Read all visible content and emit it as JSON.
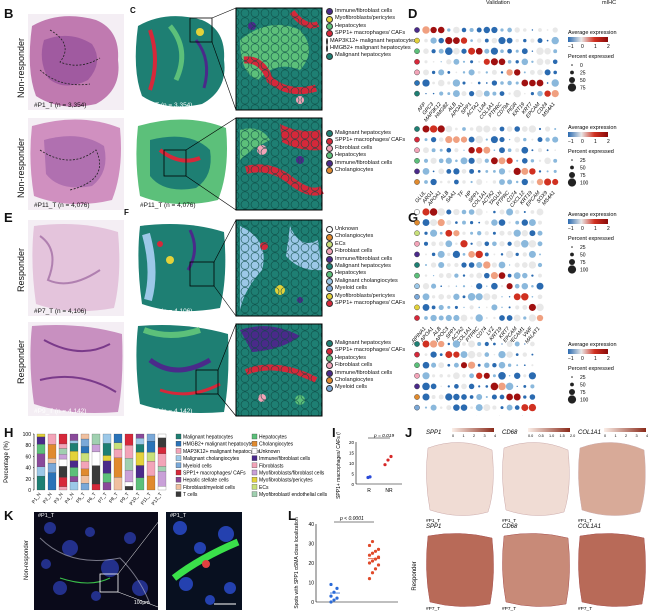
{
  "header": {
    "validation": "Validation",
    "mihc": "mIHC"
  },
  "panel_letters": {
    "B": "B",
    "C": "C",
    "D": "D",
    "E": "E",
    "F": "F",
    "G": "G",
    "H": "H",
    "I": "I",
    "J": "J",
    "K": "K",
    "L": "L"
  },
  "row_labels": {
    "nr1": "Non-responder",
    "nr2": "Non-responder",
    "r1": "Responder",
    "r2": "Responder",
    "j": "Responder",
    "k": "Non-responder"
  },
  "samples": {
    "s1_he": "#P1_T (n = 3,354)",
    "s1_sp": "#P1_T (n = 3,354)",
    "s2_he": "#P11_T (n = 4,076)",
    "s2_sp": "#P11_T (n = 4,076)",
    "s3_he": "#P7_T (n = 4,106)",
    "s3_sp": "#P7_T (n = 4,106)",
    "s4_he": "#P9_T (n = 4,142)",
    "s4_sp": "#P9_T (n = 4,142)"
  },
  "legend_c1": [
    {
      "label": "Immune/fibroblast cells",
      "color": "#4a2a8a"
    },
    {
      "label": "Myofibroblasts/pericytes",
      "color": "#e3d23a"
    },
    {
      "label": "Hepatocytes",
      "color": "#5cc07a"
    },
    {
      "label": "SPP1+ macrophages/ CAFs",
      "color": "#d6283a"
    },
    {
      "label": "MAP3K12+ malignant hepatocytes",
      "color": "#f3a4b8"
    },
    {
      "label": "HMGB2+ malignant hepatocytes",
      "color": "#2a73b8"
    },
    {
      "label": "Malignant hepatocytes",
      "color": "#1e7f73"
    }
  ],
  "legend_c2": [
    {
      "label": "Malignant hepatocytes",
      "color": "#1e7f73"
    },
    {
      "label": "SPP1+ macrophages/ CAFs",
      "color": "#d6283a"
    },
    {
      "label": "Fibroblast cells",
      "color": "#f3a4b8"
    },
    {
      "label": "Hepatocytes",
      "color": "#5cc07a"
    },
    {
      "label": "Immune/fibroblast cells",
      "color": "#4a2a8a"
    },
    {
      "label": "Cholangiocytes",
      "color": "#e08a2e"
    }
  ],
  "legend_f1": [
    {
      "label": "Unknown",
      "color": "#ffffff"
    },
    {
      "label": "Cholangiocytes",
      "color": "#e08a2e"
    },
    {
      "label": "ECs",
      "color": "#c8e07a"
    },
    {
      "label": "Fibroblast cells",
      "color": "#f3a4b8"
    },
    {
      "label": "Immune/fibroblast cells",
      "color": "#4a2a8a"
    },
    {
      "label": "Malignant hepatocytes",
      "color": "#1e7f73"
    },
    {
      "label": "Hepatocytes",
      "color": "#5cc07a"
    },
    {
      "label": "Malignant cholangiocytes",
      "color": "#9cc8e8"
    },
    {
      "label": "Myeloid cells",
      "color": "#7aa8d8"
    },
    {
      "label": "Myofibroblasts/pericytes",
      "color": "#e3d23a"
    },
    {
      "label": "SPP1+ macrophages/ CAFs",
      "color": "#d6283a"
    }
  ],
  "legend_f2": [
    {
      "label": "Malignant hepatocytes",
      "color": "#1e7f73"
    },
    {
      "label": "SPP1+ macrophages/ CAFs",
      "color": "#d6283a"
    },
    {
      "label": "Hepatocytes",
      "color": "#5cc07a"
    },
    {
      "label": "Fibroblast cells",
      "color": "#f3a4b8"
    },
    {
      "label": "Immune/fibroblast cells",
      "color": "#4a2a8a"
    },
    {
      "label": "Cholangiocytes",
      "color": "#e08a2e"
    },
    {
      "label": "Myeloid cells",
      "color": "#7aa8d8"
    }
  ],
  "dot_legend": {
    "avg_title": "Average expression",
    "avg_ticks_d": [
      "−1",
      "0",
      "1",
      "2"
    ],
    "avg_ticks_g": [
      "−1",
      "0",
      "1",
      "2"
    ],
    "pct_title": "Percent expressed",
    "pct_values": [
      "0",
      "25",
      "50",
      "75"
    ],
    "pct_values_100": [
      "25",
      "50",
      "75",
      "100"
    ]
  },
  "genes_d1": [
    "AFP",
    "GPC3",
    "MAP3K12",
    "HMGB2",
    "ALB",
    "APOA1",
    "SPP1",
    "ACTA2",
    "LUM",
    "COL1A1",
    "PTPRC",
    "CD79A",
    "PIGR",
    "KRT19",
    "KRT7",
    "EPCAM",
    "CD24",
    "MS4A1"
  ],
  "genes_d2": [
    "GLUL",
    "ARG1",
    "APOA1",
    "ALB",
    "SAA1",
    "TF",
    "HP",
    "SPP1",
    "COL1A1",
    "ACTA2",
    "TAGLN",
    "PTPRC",
    "CD74",
    "CXCL12",
    "KRT19",
    "EPCAM",
    "SOX9",
    "MS4A1"
  ],
  "genes_g1": [
    "SERPINA1",
    "APOA1",
    "ALB",
    "APOC3",
    "SPP1",
    "ACTA2",
    "COL1A1",
    "PTPRC",
    "CD74",
    "LYZ",
    "KRT19",
    "KRT7",
    "EPCAM",
    "PECAM1",
    "VWF",
    "MALAT1"
  ],
  "genes_g2": [
    "COL1A1",
    "ACTA2",
    "SPP1",
    "CD68",
    "ALB",
    "APOA1",
    "KRT19",
    "EPCAM",
    "PTPRC",
    "CD74",
    "LYZ",
    "FN1",
    "PDGFRB",
    "VWF",
    "FABP4"
  ],
  "panel_h": {
    "ylabel": "Percentage (%)",
    "yticks": [
      "0",
      "20",
      "40",
      "60",
      "80",
      "100"
    ],
    "samples": [
      "P1_N",
      "P2_N",
      "P3_N",
      "P4_N",
      "P5_T",
      "P6_T",
      "P7_T",
      "P8_T",
      "P9_T",
      "P10_T",
      "P11_T",
      "P12_T"
    ],
    "legend_left": [
      {
        "label": "Malignant hepatocytes",
        "color": "#1e7f73"
      },
      {
        "label": "HMGB2+ malignant hepatocytes",
        "color": "#2a73b8"
      },
      {
        "label": "MAP3K12+ malignant hepatocytes",
        "color": "#f3a4b8"
      },
      {
        "label": "Malignant cholangiocytes",
        "color": "#9cc8e8"
      },
      {
        "label": "Myeloid cells",
        "color": "#7aa8d8"
      },
      {
        "label": "SPP1+ macrophages/ CAFs",
        "color": "#d6283a"
      },
      {
        "label": "Hepatic stellate cells",
        "color": "#8a4a9a"
      },
      {
        "label": "Fibroblast/myeloid cells",
        "color": "#f0c0a0"
      },
      {
        "label": "T cells",
        "color": "#3a3a3a"
      }
    ],
    "legend_right": [
      {
        "label": "Hepatocytes",
        "color": "#5cc07a"
      },
      {
        "label": "Cholangiocytes",
        "color": "#e08a2e"
      },
      {
        "label": "Unknown",
        "color": "#ffffff"
      },
      {
        "label": "Immune/fibroblast cells",
        "color": "#4a2a8a"
      },
      {
        "label": "Fibroblasts",
        "color": "#f3a4b8"
      },
      {
        "label": "Myofibroblasts/fibroblast cells",
        "color": "#c9a0d8"
      },
      {
        "label": "Myofibroblasts/pericytes",
        "color": "#e3d23a"
      },
      {
        "label": "ECs",
        "color": "#c8e07a"
      },
      {
        "label": "Myofibroblast/ endothelial cells",
        "color": "#a0d0b0"
      }
    ]
  },
  "panel_i": {
    "ylabel": "SPP1+ macrophages/ CAFs (%)",
    "yticks": [
      "0",
      "5",
      "10",
      "15",
      "20"
    ],
    "groups": [
      "R",
      "NR"
    ],
    "pvalue": "p = 0.019",
    "r_values": [
      3.1,
      3.4
    ],
    "nr_values": [
      9.2,
      11.4,
      13.1
    ]
  },
  "panel_j": {
    "genes_top": [
      "SPP1",
      "CD68",
      "COL1A1"
    ],
    "genes_bottom": [
      "SPP1",
      "CD68",
      "COL1A1"
    ],
    "sample_top": "#P1_T",
    "sample_bottom": "#P7_T",
    "scale_ticks": [
      "0",
      "1",
      "2",
      "3",
      "4"
    ],
    "scale_ticks_mid": [
      "0.0",
      "0.5",
      "1.0",
      "1.5",
      "2.0"
    ]
  },
  "panel_k": {
    "sample": "#P1_T",
    "inset_sample": "#P1_T",
    "scale_label": "100μm"
  },
  "panel_l": {
    "ylabel": "Spots with SPP1 αSMA close localization",
    "yticks": [
      "0",
      "10",
      "20",
      "30",
      "40"
    ],
    "pvalue": "p < 0.0001",
    "g1_values": [
      0,
      1,
      2,
      3,
      5,
      7,
      9
    ],
    "g2_values": [
      12,
      15,
      17,
      19,
      20,
      21,
      22,
      23,
      24,
      25,
      26,
      27,
      29,
      31
    ]
  },
  "colors": {
    "heRose": "#c98fb8",
    "heDark": "#6a2a7a",
    "mal": "#1e7f73",
    "spp1": "#d6283a",
    "hep": "#5cc07a",
    "immune": "#4a2a8a",
    "fib": "#f3a4b8",
    "blue": "#2a73b8"
  }
}
